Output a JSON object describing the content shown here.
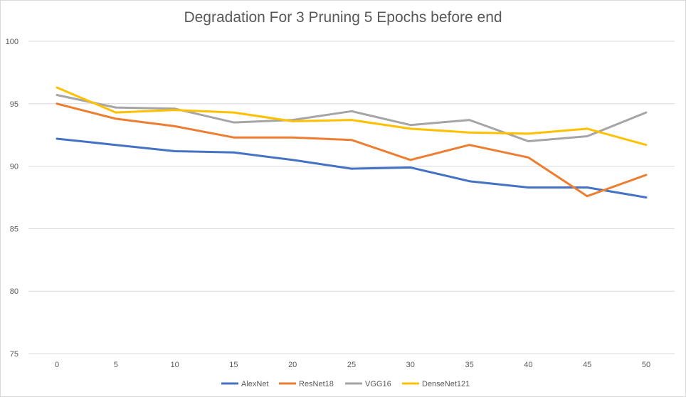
{
  "chart_data": {
    "type": "line",
    "title": "Degradation For 3 Pruning 5 Epochs before end",
    "xlabel": "",
    "ylabel": "",
    "x": [
      0,
      5,
      10,
      15,
      20,
      25,
      30,
      35,
      40,
      45,
      50
    ],
    "ylim": [
      75,
      100
    ],
    "yticks": [
      75,
      80,
      85,
      90,
      95,
      100
    ],
    "grid": true,
    "legend_position": "bottom",
    "series": [
      {
        "name": "AlexNet",
        "color": "#4472c4",
        "values": [
          92.2,
          91.7,
          91.2,
          91.1,
          90.5,
          89.8,
          89.9,
          88.8,
          88.3,
          88.3,
          87.5
        ]
      },
      {
        "name": "ResNet18",
        "color": "#ed7d31",
        "values": [
          95.0,
          93.8,
          93.2,
          92.3,
          92.3,
          92.1,
          90.5,
          91.7,
          90.7,
          87.6,
          89.3
        ]
      },
      {
        "name": "VGG16",
        "color": "#a5a5a5",
        "values": [
          95.7,
          94.7,
          94.6,
          93.5,
          93.7,
          94.4,
          93.3,
          93.7,
          92.0,
          92.4,
          94.3
        ]
      },
      {
        "name": "DenseNet121",
        "color": "#ffc000",
        "values": [
          96.3,
          94.3,
          94.5,
          94.3,
          93.6,
          93.7,
          93.0,
          92.7,
          92.6,
          93.0,
          91.7
        ]
      }
    ]
  }
}
